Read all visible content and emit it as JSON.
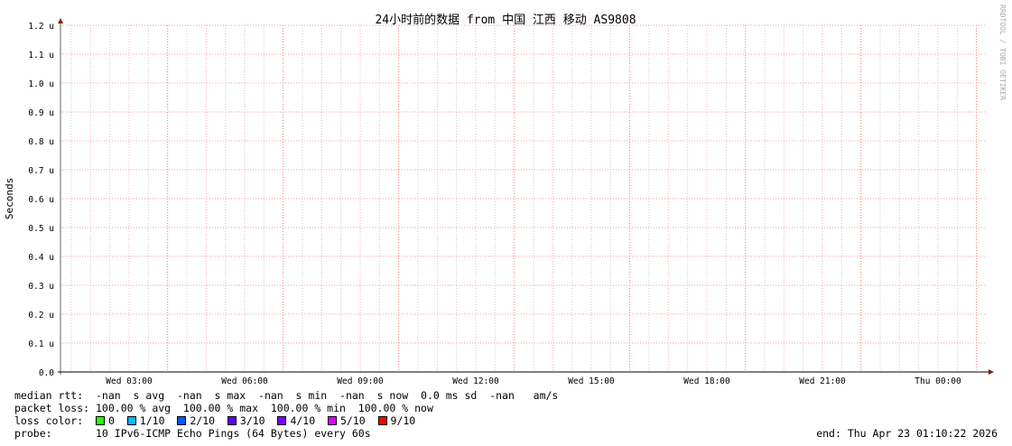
{
  "chart_data": {
    "type": "line",
    "title": "24小时前的数据 from 中国 江西 移动 AS9808",
    "ylabel": "Seconds",
    "xlabel": "",
    "ylim": [
      0,
      1.2e-06
    ],
    "y_ticks": [
      "0.0",
      "0.1 u",
      "0.2 u",
      "0.3 u",
      "0.4 u",
      "0.5 u",
      "0.6 u",
      "0.7 u",
      "0.8 u",
      "0.9 u",
      "1.0 u",
      "1.1 u",
      "1.2 u"
    ],
    "x_ticks": [
      "Wed 03:00",
      "Wed 06:00",
      "Wed 09:00",
      "Wed 12:00",
      "Wed 15:00",
      "Wed 18:00",
      "Wed 21:00",
      "Thu 00:00"
    ],
    "x_range": [
      "Wed 01:10",
      "Thu 01:10"
    ],
    "grid": true,
    "series": [],
    "watermark": "RRDTOOL / TOBI OETIKER"
  },
  "legend": {
    "median_rtt": "median rtt:  -nan  s avg  -nan  s max  -nan  s min  -nan  s now  0.0 ms sd  -nan   am/s",
    "packet_loss": "packet loss: 100.00 % avg  100.00 % max  100.00 % min  100.00 % now",
    "loss_color_label": "loss color:  ",
    "loss_colors": [
      {
        "label": "0",
        "color": "#26ff00"
      },
      {
        "label": "1/10",
        "color": "#00b8ff"
      },
      {
        "label": "2/10",
        "color": "#0059ff"
      },
      {
        "label": "3/10",
        "color": "#5e00ff"
      },
      {
        "label": "4/10",
        "color": "#7e00ff"
      },
      {
        "label": "5/10",
        "color": "#dd00ff"
      },
      {
        "label": "9/10",
        "color": "#ff0000"
      }
    ],
    "probe": "probe:       10 IPv6-ICMP Echo Pings (64 Bytes) every 60s",
    "end": "end: Thu Apr 23 01:10:22 2026"
  }
}
